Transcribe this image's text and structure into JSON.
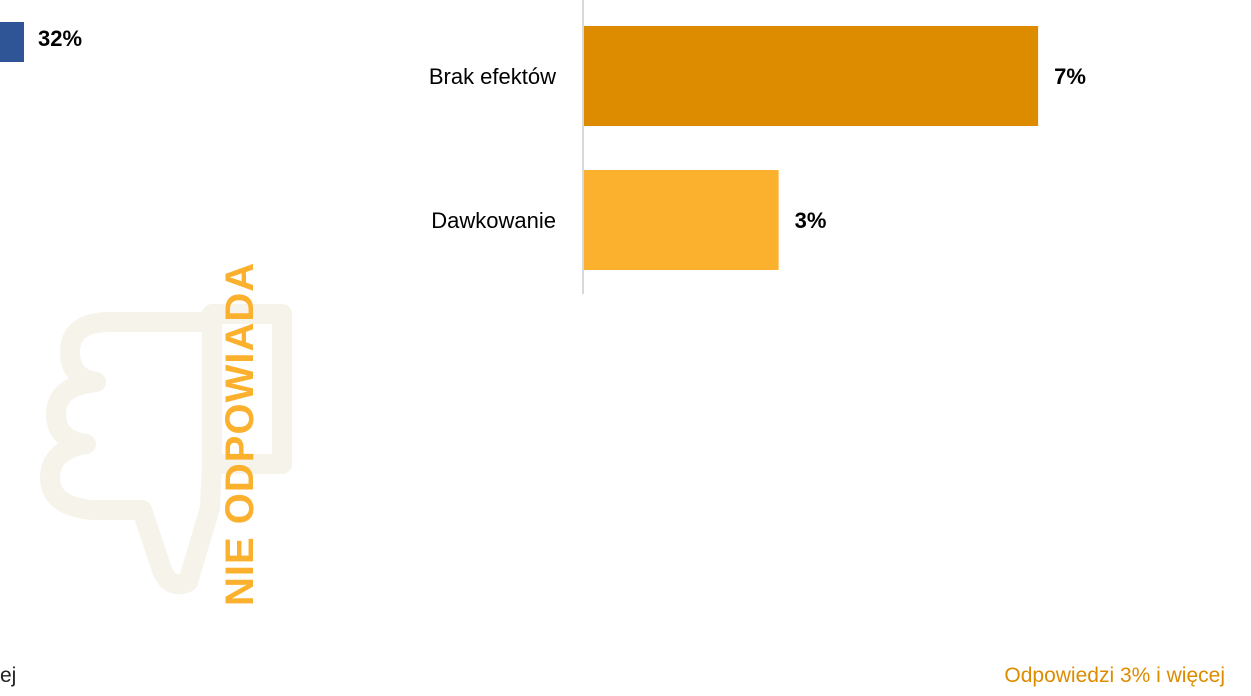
{
  "left_panel": {
    "value_label": "32%",
    "bar_color": "#2f5597"
  },
  "vertical_title": "NIE ODPOWIADA",
  "icon": "thumbs-down-icon",
  "footnote_left": "ej",
  "footnote_right": "Odpowiedzi 3% i więcej",
  "colors": {
    "title": "#fbb12e",
    "footnote_right": "#dd8c00",
    "axis": "#d9d9d9"
  },
  "chart_data": {
    "type": "bar",
    "orientation": "horizontal",
    "categories": [
      "Brak efektów",
      "Dawkowanie"
    ],
    "values": [
      7,
      3
    ],
    "value_labels": [
      "7%",
      "3%"
    ],
    "colors": [
      "#dd8c00",
      "#fbb12e"
    ],
    "xlim": [
      0,
      7.8
    ],
    "grid": false,
    "legend": "none"
  }
}
